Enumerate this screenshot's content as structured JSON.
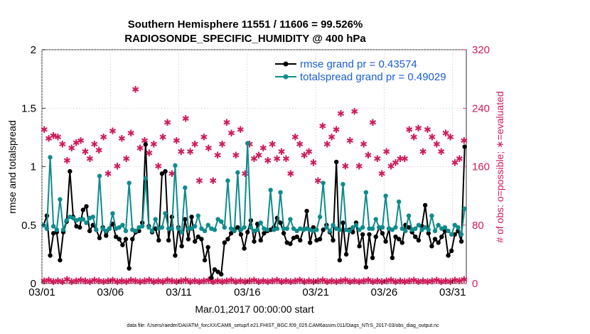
{
  "colors": {
    "rmse": "#000000",
    "spread": "#0f8b8d",
    "obs": "#d01a5a",
    "legend_text": "#1a5fd6"
  },
  "chart_data": {
    "type": "line",
    "title": [
      "Southern Hemisphere 11551 / 11606 = 99.526%",
      "RADIOSONDE_SPECIFIC_HUMIDITY @ 400 hPa"
    ],
    "xlabel": "Mar.01,2017 00:00:00 start",
    "ylabel_left": "rmse and totalspread",
    "ylabel_right": "# of obs: o=possible; ∗=evaluated",
    "ylim_left": [
      0,
      2
    ],
    "ylim_right": [
      0,
      320
    ],
    "xlim": [
      0,
      31
    ],
    "x_ticks": [
      0,
      5,
      10,
      15,
      20,
      25,
      30
    ],
    "x_tick_labels": [
      "03/01",
      "03/06",
      "03/11",
      "03/16",
      "03/21",
      "03/26",
      "03/31"
    ],
    "y_left_ticks": [
      "0",
      "0.5",
      "1",
      "1.5",
      "2"
    ],
    "y_right_ticks": [
      "0",
      "80",
      "160",
      "240",
      "320"
    ],
    "legend": [
      "rmse grand pr = 0.43574",
      "totalspread grand pr = 0.49029"
    ],
    "footnote": "data file: /Users/raeder/DAI/ATM_forcXX/CAM6_setup/f.e21.FHIST_BGC.f09_025.CAM6assim.011/Diags_NTrS_2017-03/obs_diag_output.nc",
    "series": [
      {
        "name": "rmse",
        "axis": "left",
        "values": [
          0.5,
          0.58,
          0.24,
          0.43,
          0.44,
          0.2,
          0.44,
          0.53,
          0.96,
          0.57,
          0.49,
          0.48,
          0.63,
          0.66,
          0.45,
          0.5,
          0.46,
          0.39,
          0.48,
          0.41,
          0.47,
          0.51,
          0.4,
          0.38,
          0.33,
          0.38,
          0.13,
          0.38,
          0.44,
          0.45,
          0.52,
          1.19,
          0.49,
          0.44,
          0.47,
          0.37,
          0.94,
          0.96,
          0.37,
          0.57,
          0.24,
          0.48,
          0.32,
          0.55,
          0.38,
          0.57,
          0.36,
          0.4,
          0.38,
          0.2,
          0.31,
          0.05,
          0.12,
          0.1,
          0.08,
          0.35,
          0.38,
          0.43,
          0.46,
          0.48,
          0.42,
          0.3,
          0.44,
          0.54,
          0.36,
          0.51,
          0.37,
          0.43,
          0.45,
          0.46,
          0.48,
          0.56,
          0.52,
          0.43,
          0.35,
          0.34,
          0.39,
          0.4,
          0.37,
          0.46,
          0.62,
          0.35,
          0.48,
          0.37,
          0.38,
          0.46,
          0.5,
          0.44,
          0.37,
          1.04,
          0.2,
          0.52,
          0.25,
          0.46,
          0.44,
          0.52,
          0.32,
          0.42,
          0.14,
          0.42,
          0.22,
          0.4,
          0.48,
          0.43,
          0.36,
          0.47,
          0.22,
          0.4,
          0.38,
          0.35,
          0.5,
          0.48,
          0.44,
          0.4,
          0.37,
          0.49,
          0.67,
          0.43,
          0.32,
          0.38,
          0.35,
          0.4,
          0.45,
          0.24,
          0.28,
          0.42,
          0.45,
          0.36,
          1.17
        ]
      },
      {
        "name": "totalspread",
        "axis": "left",
        "values": [
          0.5,
          0.47,
          1.08,
          0.49,
          0.46,
          0.72,
          0.46,
          0.54,
          0.57,
          0.56,
          0.54,
          0.55,
          0.55,
          0.52,
          0.56,
          0.57,
          0.46,
          0.92,
          0.47,
          0.45,
          0.47,
          0.6,
          0.47,
          0.48,
          0.5,
          0.45,
          0.86,
          0.46,
          0.45,
          0.48,
          0.49,
          0.9,
          0.48,
          0.45,
          0.55,
          0.47,
          0.48,
          0.6,
          0.47,
          0.47,
          1.01,
          0.47,
          0.44,
          0.82,
          0.47,
          0.47,
          0.49,
          0.58,
          0.47,
          0.45,
          0.5,
          0.47,
          0.46,
          0.55,
          0.53,
          0.48,
          0.88,
          0.47,
          0.45,
          0.95,
          0.46,
          0.48,
          1.2,
          0.48,
          0.45,
          0.46,
          0.52,
          0.47,
          0.46,
          0.8,
          0.46,
          0.47,
          0.78,
          0.47,
          0.47,
          0.55,
          0.47,
          0.45,
          0.47,
          0.46,
          0.47,
          0.46,
          0.45,
          0.46,
          0.57,
          0.86,
          0.48,
          0.45,
          0.5,
          0.47,
          0.46,
          0.85,
          0.46,
          0.45,
          0.48,
          0.5,
          0.46,
          0.48,
          0.78,
          0.47,
          0.47,
          0.55,
          0.48,
          0.48,
          0.75,
          0.47,
          0.46,
          0.48,
          0.7,
          0.47,
          0.45,
          0.58,
          0.46,
          0.47,
          0.5,
          0.46,
          0.48,
          0.46,
          0.58,
          0.45,
          0.5,
          0.47,
          0.48,
          0.45,
          0.42,
          0.5,
          0.48,
          0.42,
          0.64
        ]
      },
      {
        "name": "obs possible",
        "axis": "right",
        "values": [
          210,
          198,
          202,
          200,
          190,
          168,
          185,
          192,
          195,
          180,
          170,
          190,
          182,
          200,
          150,
          208,
          160,
          198,
          170,
          205,
          265,
          185,
          195,
          178,
          190,
          160,
          200,
          220,
          150,
          195,
          180,
          225,
          180,
          190,
          140,
          200,
          185,
          140,
          175,
          190,
          220,
          205,
          175,
          210,
          150,
          190,
          170,
          175,
          185,
          168,
          190,
          170,
          180,
          170,
          150,
          200,
          190,
          175,
          180,
          165,
          140,
          215,
          190,
          200,
          210,
          232,
          160,
          195,
          235,
          160,
          190,
          175,
          220,
          170,
          150,
          180,
          160,
          165,
          170,
          170,
          210,
          200,
          212,
          180,
          210,
          200,
          190,
          180,
          205,
          200,
          165,
          170,
          195
        ]
      },
      {
        "name": "obs evaluated",
        "axis": "right",
        "values": [
          3,
          4,
          2,
          3,
          2,
          5,
          2,
          3,
          4,
          3,
          2,
          4,
          3,
          2,
          3,
          4,
          2,
          3,
          2,
          4,
          3,
          2,
          3,
          4,
          2,
          3,
          2,
          4,
          3,
          2,
          3,
          4,
          2,
          3,
          2,
          3,
          4,
          2,
          3,
          2,
          3,
          4,
          2,
          3,
          2,
          3,
          4,
          2,
          3,
          2,
          3,
          4,
          2,
          3,
          2,
          3,
          4,
          2,
          3,
          2,
          3,
          4,
          2,
          3,
          2,
          3,
          4,
          2,
          3,
          2,
          3,
          4,
          2,
          3,
          2,
          3,
          4,
          2,
          3,
          2,
          3,
          4,
          2,
          3,
          2,
          3,
          4,
          2,
          3,
          2,
          4,
          3,
          5
        ]
      }
    ]
  }
}
